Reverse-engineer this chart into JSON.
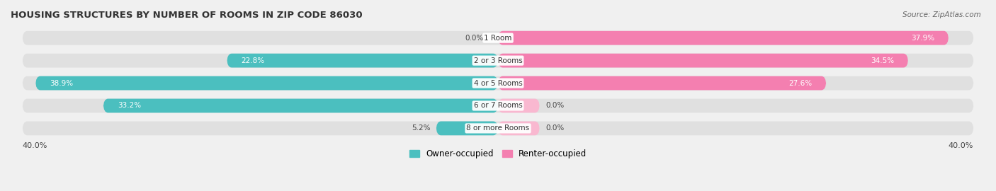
{
  "title": "HOUSING STRUCTURES BY NUMBER OF ROOMS IN ZIP CODE 86030",
  "source": "Source: ZipAtlas.com",
  "categories": [
    "1 Room",
    "2 or 3 Rooms",
    "4 or 5 Rooms",
    "6 or 7 Rooms",
    "8 or more Rooms"
  ],
  "owner_values": [
    0.0,
    22.8,
    38.9,
    33.2,
    5.2
  ],
  "renter_values": [
    37.9,
    34.5,
    27.6,
    0.0,
    0.0
  ],
  "renter_stub_values": [
    37.9,
    34.5,
    27.6,
    3.5,
    3.5
  ],
  "owner_color": "#4BBFBF",
  "renter_color": "#F47FB0",
  "renter_stub_color": "#F9B8D0",
  "owner_label": "Owner-occupied",
  "renter_label": "Renter-occupied",
  "xlim": 40.0,
  "bar_height": 0.62,
  "background_color": "#f0f0f0",
  "bar_background": "#e0e0e0",
  "axis_label_left": "40.0%",
  "axis_label_right": "40.0%"
}
